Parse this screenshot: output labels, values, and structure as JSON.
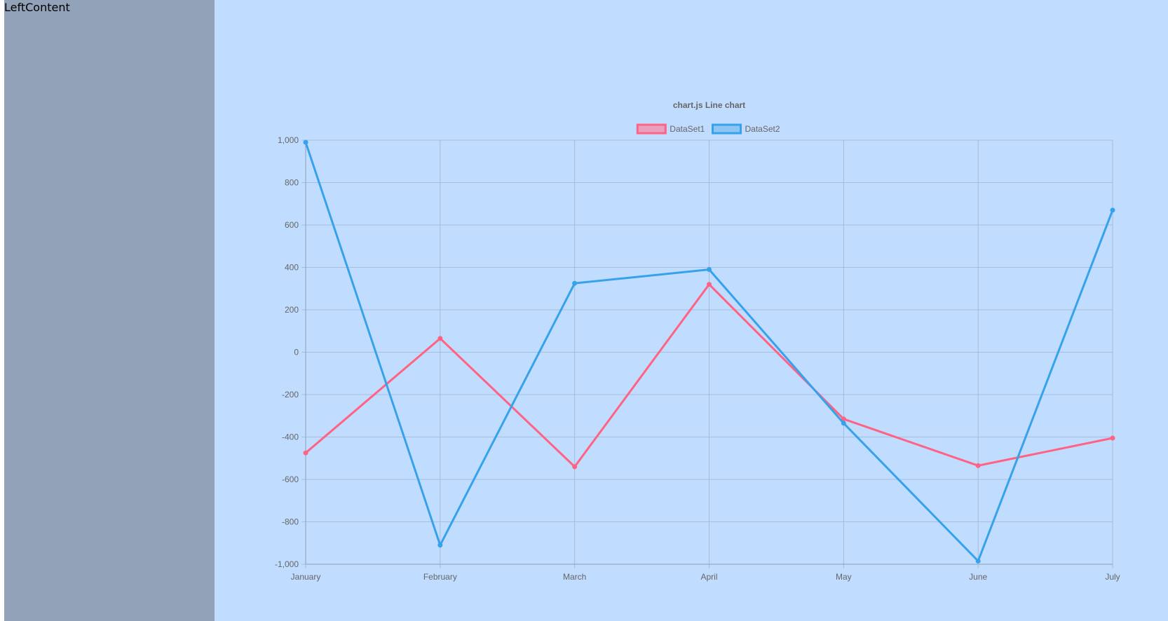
{
  "left_panel": {
    "label": "LeftContent",
    "background": "#92a2b8"
  },
  "right_panel": {
    "background": "#c0dcfe"
  },
  "chart_data": {
    "type": "line",
    "title": "chart.js Line chart",
    "categories": [
      "January",
      "February",
      "March",
      "April",
      "May",
      "June",
      "July"
    ],
    "series": [
      {
        "name": "DataSet1",
        "color": "#ff6384",
        "fill": "#e8a0bf",
        "values": [
          -475,
          65,
          -540,
          320,
          -315,
          -535,
          -405
        ]
      },
      {
        "name": "DataSet2",
        "color": "#36a2eb",
        "fill": "#8ec5f3",
        "values": [
          990,
          -910,
          325,
          390,
          -335,
          -985,
          670
        ]
      }
    ],
    "ylim": [
      -1000,
      1000
    ],
    "yticks": [
      {
        "value": 1000,
        "label": "1,000"
      },
      {
        "value": 800,
        "label": "800"
      },
      {
        "value": 600,
        "label": "600"
      },
      {
        "value": 400,
        "label": "400"
      },
      {
        "value": 200,
        "label": "200"
      },
      {
        "value": 0,
        "label": "0"
      },
      {
        "value": -200,
        "label": "-200"
      },
      {
        "value": -400,
        "label": "-400"
      },
      {
        "value": -600,
        "label": "-600"
      },
      {
        "value": -800,
        "label": "-800"
      },
      {
        "value": -1000,
        "label": "-1,000"
      }
    ],
    "xlabel": "",
    "ylabel": "",
    "grid": true,
    "legend_position": "top"
  }
}
